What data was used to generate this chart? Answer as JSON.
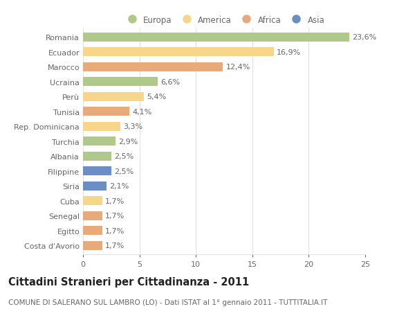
{
  "categories": [
    "Romania",
    "Ecuador",
    "Marocco",
    "Ucraina",
    "Perù",
    "Tunisia",
    "Rep. Dominicana",
    "Turchia",
    "Albania",
    "Filippine",
    "Siria",
    "Cuba",
    "Senegal",
    "Egitto",
    "Costa d'Avorio"
  ],
  "values": [
    23.6,
    16.9,
    12.4,
    6.6,
    5.4,
    4.1,
    3.3,
    2.9,
    2.5,
    2.5,
    2.1,
    1.7,
    1.7,
    1.7,
    1.7
  ],
  "labels": [
    "23,6%",
    "16,9%",
    "12,4%",
    "6,6%",
    "5,4%",
    "4,1%",
    "3,3%",
    "2,9%",
    "2,5%",
    "2,5%",
    "2,1%",
    "1,7%",
    "1,7%",
    "1,7%",
    "1,7%"
  ],
  "continents": [
    "Europa",
    "America",
    "Africa",
    "Europa",
    "America",
    "Africa",
    "America",
    "Europa",
    "Europa",
    "Asia",
    "Asia",
    "America",
    "Africa",
    "Africa",
    "Africa"
  ],
  "continent_colors": {
    "Europa": "#b0c98a",
    "America": "#f7d68a",
    "Africa": "#e8aa7a",
    "Asia": "#6b8fc4"
  },
  "legend_order": [
    "Europa",
    "America",
    "Africa",
    "Asia"
  ],
  "title": "Cittadini Stranieri per Cittadinanza - 2011",
  "subtitle": "COMUNE DI SALERANO SUL LAMBRO (LO) - Dati ISTAT al 1° gennaio 2011 - TUTTITALIA.IT",
  "xlim": [
    0,
    25
  ],
  "xticks": [
    0,
    5,
    10,
    15,
    20,
    25
  ],
  "bar_height": 0.6,
  "background_color": "#ffffff",
  "grid_color": "#e0e0e0",
  "text_color": "#666666",
  "label_fontsize": 8,
  "tick_fontsize": 8,
  "title_fontsize": 10.5,
  "subtitle_fontsize": 7.5
}
